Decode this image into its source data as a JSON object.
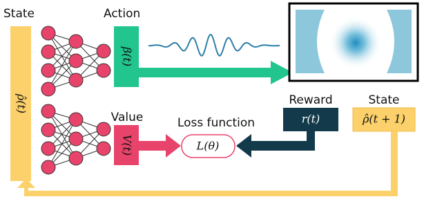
{
  "labels": {
    "state_in": "State",
    "action": "Action",
    "value": "Value",
    "loss": "Loss function",
    "reward": "Reward",
    "state_out": "State"
  },
  "math": {
    "state": "ρ̂(t)",
    "action": "β(t)",
    "value": "V(t)",
    "loss": "L(θ)",
    "reward": "r(t)",
    "next_state": "ρ̂(t + 1)"
  }
}
